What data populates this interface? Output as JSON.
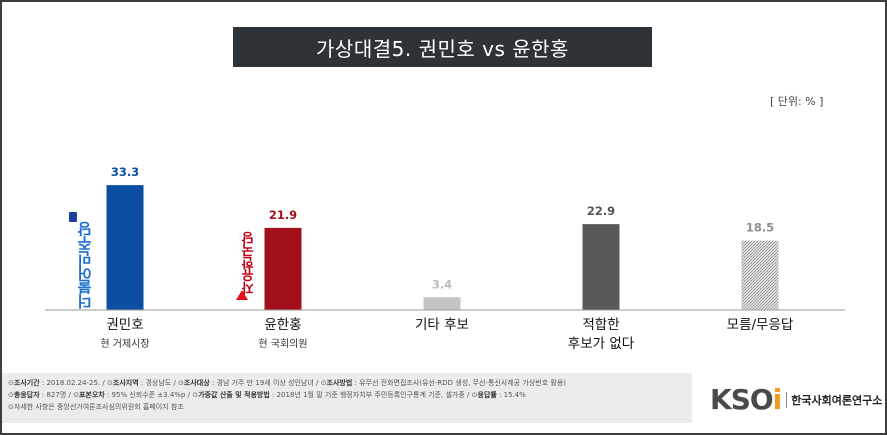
{
  "title": "가상대결5. 권민호 vs 윤한홍",
  "unit_label": "[ 단위: % ]",
  "chart_data": {
    "type": "bar",
    "title": "가상대결5. 권민호 vs 윤한홍",
    "categories": [
      "권민호",
      "윤한홍",
      "기타 후보",
      "적합한 후보가 없다",
      "모름/무응답"
    ],
    "category_lines": [
      [
        "권민호"
      ],
      [
        "윤한홍"
      ],
      [
        "기타 후보"
      ],
      [
        "적합한",
        "후보가 없다"
      ],
      [
        "모름/무응답"
      ]
    ],
    "subtitles": [
      "현 거제시장",
      "현 국회의원",
      "",
      "",
      ""
    ],
    "values": [
      33.3,
      21.9,
      3.4,
      22.9,
      18.5
    ],
    "value_labels": [
      "33.3",
      "21.9",
      "3.4",
      "22.9",
      "18.5"
    ],
    "ylim": [
      0,
      40
    ],
    "grid": false,
    "legend": "none",
    "colors": [
      "#0b4ea2",
      "#a1101a",
      "#c4c4c4",
      "#585858",
      "#d9d9d9"
    ],
    "value_label_colors": [
      "#0b4ea2",
      "#a1101a",
      "#bdbdbd",
      "#555555",
      "#909090"
    ],
    "patterns": [
      "solid",
      "solid",
      "solid",
      "solid",
      "hatch"
    ]
  },
  "parties": {
    "dem": "더불어민주당",
    "lib": "자유한국당"
  },
  "footer": {
    "line1": [
      {
        "k": "조사기간",
        "v": "2018.02.24-25."
      },
      {
        "k": "조사지역",
        "v": "경상남도"
      },
      {
        "k": "조사대상",
        "v": "경남 거주 만 19세 이상 성인남녀"
      },
      {
        "k": "조사방법",
        "v": "유무선 전화면접조사(유선-RDD 생성, 무선-통신사제공 가상번호 활용)"
      }
    ],
    "line2": [
      {
        "k": "총응답자",
        "v": "827명"
      },
      {
        "k": "표본오차",
        "v": "95% 신뢰수준 ±3.4%p"
      },
      {
        "k": "가중값 산출 및 적용방법",
        "v": "2018년 1월 말 기준 행정자치부 주민등록인구통계 기준, 셀가중"
      },
      {
        "k": "응답률",
        "v": "15.4%"
      }
    ],
    "line3": "자세한 사항은 중앙선거여론조사심의위원회 홈페이지 참조"
  },
  "logo": {
    "mark_main": "KSO",
    "mark_i": "i",
    "name": "한국사회여론연구소"
  }
}
